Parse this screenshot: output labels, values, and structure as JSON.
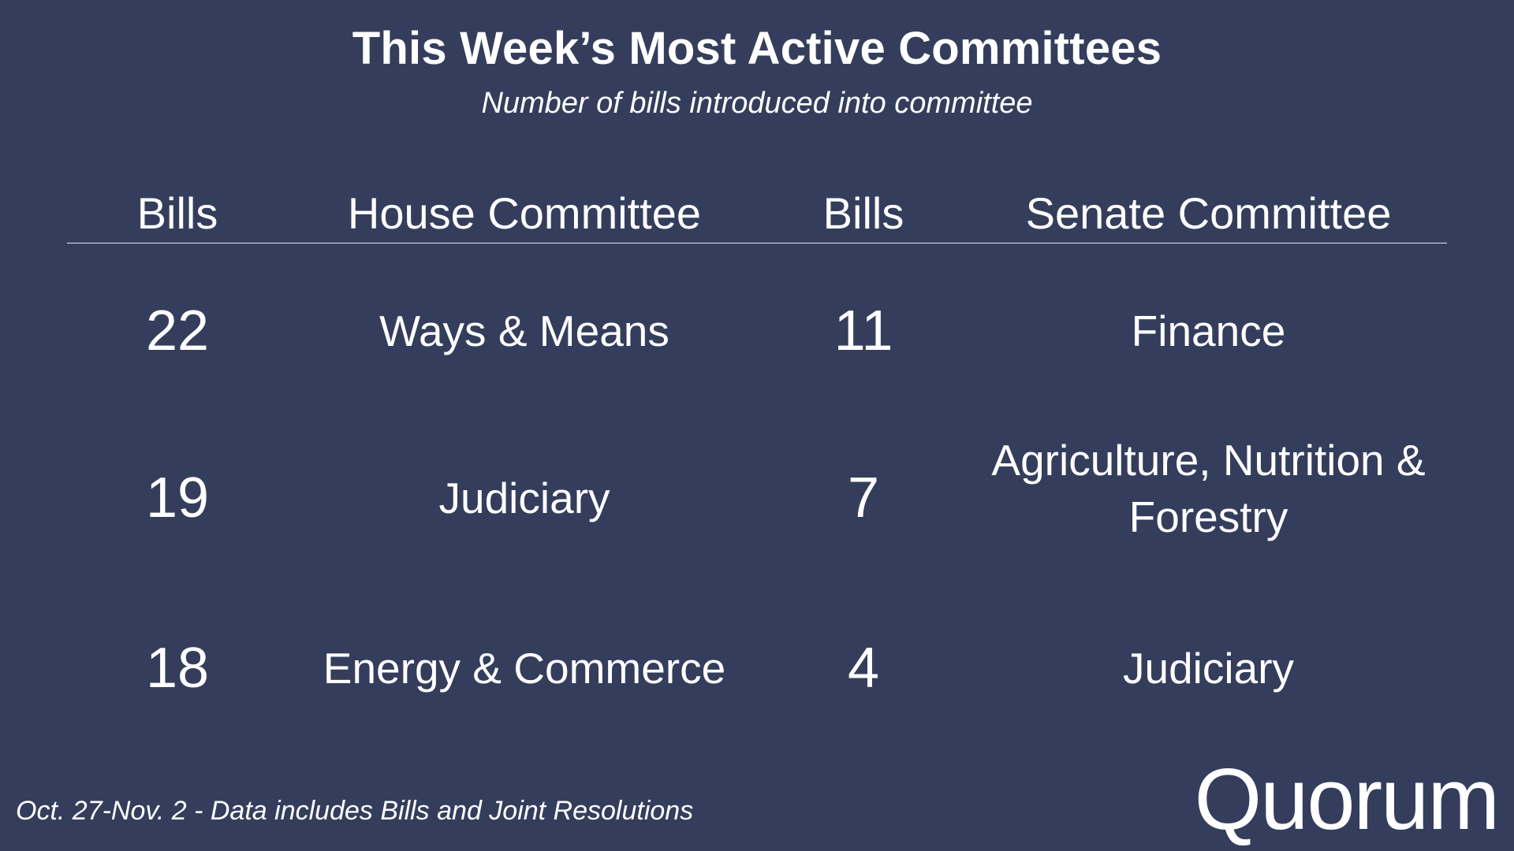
{
  "title": "This Week’s Most Active Committees",
  "subtitle": "Number of bills introduced into committee",
  "table": {
    "headers": [
      "Bills",
      "House Committee",
      "Bills",
      "Senate Committee"
    ],
    "rows": [
      {
        "house_bills": "22",
        "house_committee": "Ways & Means",
        "senate_bills": "11",
        "senate_committee": "Finance"
      },
      {
        "house_bills": "19",
        "house_committee": "Judiciary",
        "senate_bills": "7",
        "senate_committee": "Agriculture, Nutrition & Forestry"
      },
      {
        "house_bills": "18",
        "house_committee": "Energy & Commerce",
        "senate_bills": "4",
        "senate_committee": "Judiciary"
      }
    ]
  },
  "footnote": "Oct. 27-Nov. 2 - Data includes Bills and Joint Resolutions",
  "logo": "Quorum"
}
